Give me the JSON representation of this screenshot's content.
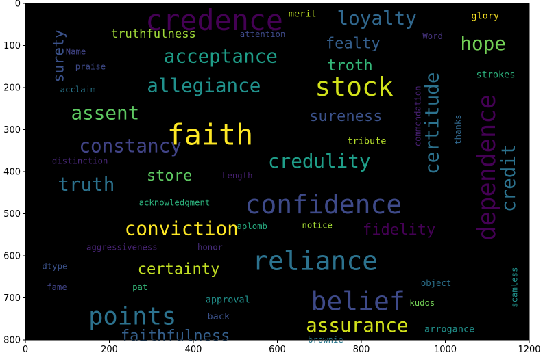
{
  "chart_data": {
    "type": "wordcloud",
    "background": "#000000",
    "xlim": [
      0,
      1200
    ],
    "ylim": [
      800,
      0
    ],
    "x_ticks": [
      "0",
      "200",
      "400",
      "600",
      "800",
      "1000",
      "1200"
    ],
    "y_ticks": [
      "0",
      "100",
      "200",
      "300",
      "400",
      "500",
      "600",
      "700",
      "800"
    ],
    "words": [
      {
        "text": "credence",
        "x": 450,
        "y": 40,
        "size": 68,
        "color": "#440154"
      },
      {
        "text": "loyalty",
        "x": 837,
        "y": 35,
        "size": 45,
        "color": "#31688e"
      },
      {
        "text": "merit",
        "x": 660,
        "y": 25,
        "size": 22,
        "color": "#bddf26"
      },
      {
        "text": "glory",
        "x": 1095,
        "y": 30,
        "size": 22,
        "color": "#fde725"
      },
      {
        "text": "surety",
        "x": 80,
        "y": 125,
        "size": 35,
        "color": "#3b528b"
      },
      {
        "text": "truthfulness",
        "x": 305,
        "y": 73,
        "size": 28,
        "color": "#a0da39"
      },
      {
        "text": "attention",
        "x": 565,
        "y": 73,
        "size": 20,
        "color": "#3e4a89"
      },
      {
        "text": "fealty",
        "x": 780,
        "y": 95,
        "size": 36,
        "color": "#355f8d"
      },
      {
        "text": "Word",
        "x": 970,
        "y": 78,
        "size": 20,
        "color": "#46337e"
      },
      {
        "text": "hope",
        "x": 1090,
        "y": 95,
        "size": 45,
        "color": "#73d056"
      },
      {
        "text": "acceptance",
        "x": 465,
        "y": 125,
        "size": 45,
        "color": "#1f9e89"
      },
      {
        "text": "Name",
        "x": 120,
        "y": 115,
        "size": 20,
        "color": "#414487"
      },
      {
        "text": "praise",
        "x": 155,
        "y": 150,
        "size": 20,
        "color": "#3e4a89"
      },
      {
        "text": "troth",
        "x": 773,
        "y": 148,
        "size": 36,
        "color": "#35b779"
      },
      {
        "text": "certitude",
        "x": 968,
        "y": 285,
        "size": 45,
        "color": "#2c728e"
      },
      {
        "text": "commendation",
        "x": 935,
        "y": 268,
        "size": 20,
        "color": "#482173"
      },
      {
        "text": "allegiance",
        "x": 425,
        "y": 195,
        "size": 45,
        "color": "#21918c"
      },
      {
        "text": "stock",
        "x": 783,
        "y": 198,
        "size": 62,
        "color": "#d2e21b"
      },
      {
        "text": "strokes",
        "x": 1120,
        "y": 170,
        "size": 22,
        "color": "#2db27d"
      },
      {
        "text": "acclaim",
        "x": 125,
        "y": 205,
        "size": 20,
        "color": "#2a788e"
      },
      {
        "text": "dependence",
        "x": 1100,
        "y": 390,
        "size": 58,
        "color": "#440154"
      },
      {
        "text": "thanks",
        "x": 1030,
        "y": 300,
        "size": 20,
        "color": "#31688e"
      },
      {
        "text": "assent",
        "x": 190,
        "y": 260,
        "size": 45,
        "color": "#5ec962"
      },
      {
        "text": "faith",
        "x": 440,
        "y": 312,
        "size": 68,
        "color": "#fde725"
      },
      {
        "text": "sureness",
        "x": 763,
        "y": 268,
        "size": 36,
        "color": "#3b528b"
      },
      {
        "text": "credit",
        "x": 1150,
        "y": 415,
        "size": 45,
        "color": "#2c728e"
      },
      {
        "text": "constancy",
        "x": 250,
        "y": 338,
        "size": 45,
        "color": "#414487"
      },
      {
        "text": "tribute",
        "x": 813,
        "y": 328,
        "size": 22,
        "color": "#b5de2b"
      },
      {
        "text": "distinction",
        "x": 130,
        "y": 375,
        "size": 20,
        "color": "#482878"
      },
      {
        "text": "credulity",
        "x": 700,
        "y": 375,
        "size": 45,
        "color": "#1f9e89"
      },
      {
        "text": "truth",
        "x": 145,
        "y": 430,
        "size": 45,
        "color": "#2c728e"
      },
      {
        "text": "store",
        "x": 343,
        "y": 410,
        "size": 36,
        "color": "#5ec962"
      },
      {
        "text": "Length",
        "x": 505,
        "y": 410,
        "size": 20,
        "color": "#482173"
      },
      {
        "text": "confidence",
        "x": 710,
        "y": 478,
        "size": 62,
        "color": "#3e4a89"
      },
      {
        "text": "acknowledgment",
        "x": 355,
        "y": 474,
        "size": 20,
        "color": "#2db27d"
      },
      {
        "text": "conviction",
        "x": 372,
        "y": 535,
        "size": 45,
        "color": "#fde725"
      },
      {
        "text": "aplomb",
        "x": 540,
        "y": 530,
        "size": 20,
        "color": "#27ad81"
      },
      {
        "text": "notice",
        "x": 695,
        "y": 528,
        "size": 20,
        "color": "#a5db36"
      },
      {
        "text": "fidelity",
        "x": 890,
        "y": 538,
        "size": 36,
        "color": "#440154"
      },
      {
        "text": "aggressiveness",
        "x": 230,
        "y": 580,
        "size": 20,
        "color": "#482475"
      },
      {
        "text": "honor",
        "x": 440,
        "y": 580,
        "size": 20,
        "color": "#472d7b"
      },
      {
        "text": "reliance",
        "x": 690,
        "y": 612,
        "size": 62,
        "color": "#2c728e"
      },
      {
        "text": "certainty",
        "x": 365,
        "y": 632,
        "size": 36,
        "color": "#c2df23"
      },
      {
        "text": "dtype",
        "x": 70,
        "y": 625,
        "size": 20,
        "color": "#3b528b"
      },
      {
        "text": "scamless",
        "x": 1165,
        "y": 675,
        "size": 20,
        "color": "#21918c"
      },
      {
        "text": "fame",
        "x": 75,
        "y": 675,
        "size": 20,
        "color": "#414487"
      },
      {
        "text": "pat",
        "x": 273,
        "y": 675,
        "size": 20,
        "color": "#35b779"
      },
      {
        "text": "object",
        "x": 978,
        "y": 665,
        "size": 20,
        "color": "#2c728e"
      },
      {
        "text": "approval",
        "x": 482,
        "y": 705,
        "size": 22,
        "color": "#21918c"
      },
      {
        "text": "belief",
        "x": 792,
        "y": 708,
        "size": 62,
        "color": "#3e4a89"
      },
      {
        "text": "kudos",
        "x": 945,
        "y": 712,
        "size": 20,
        "color": "#73d056"
      },
      {
        "text": "points",
        "x": 255,
        "y": 745,
        "size": 58,
        "color": "#2c728e"
      },
      {
        "text": "back",
        "x": 460,
        "y": 745,
        "size": 22,
        "color": "#3b528b"
      },
      {
        "text": "assurance",
        "x": 790,
        "y": 765,
        "size": 45,
        "color": "#d2e21b"
      },
      {
        "text": "arrogance",
        "x": 1010,
        "y": 775,
        "size": 22,
        "color": "#21918c"
      },
      {
        "text": "faithfulness",
        "x": 357,
        "y": 790,
        "size": 36,
        "color": "#35608d"
      },
      {
        "text": "brownie",
        "x": 715,
        "y": 800,
        "size": 20,
        "color": "#2a788e"
      }
    ]
  }
}
